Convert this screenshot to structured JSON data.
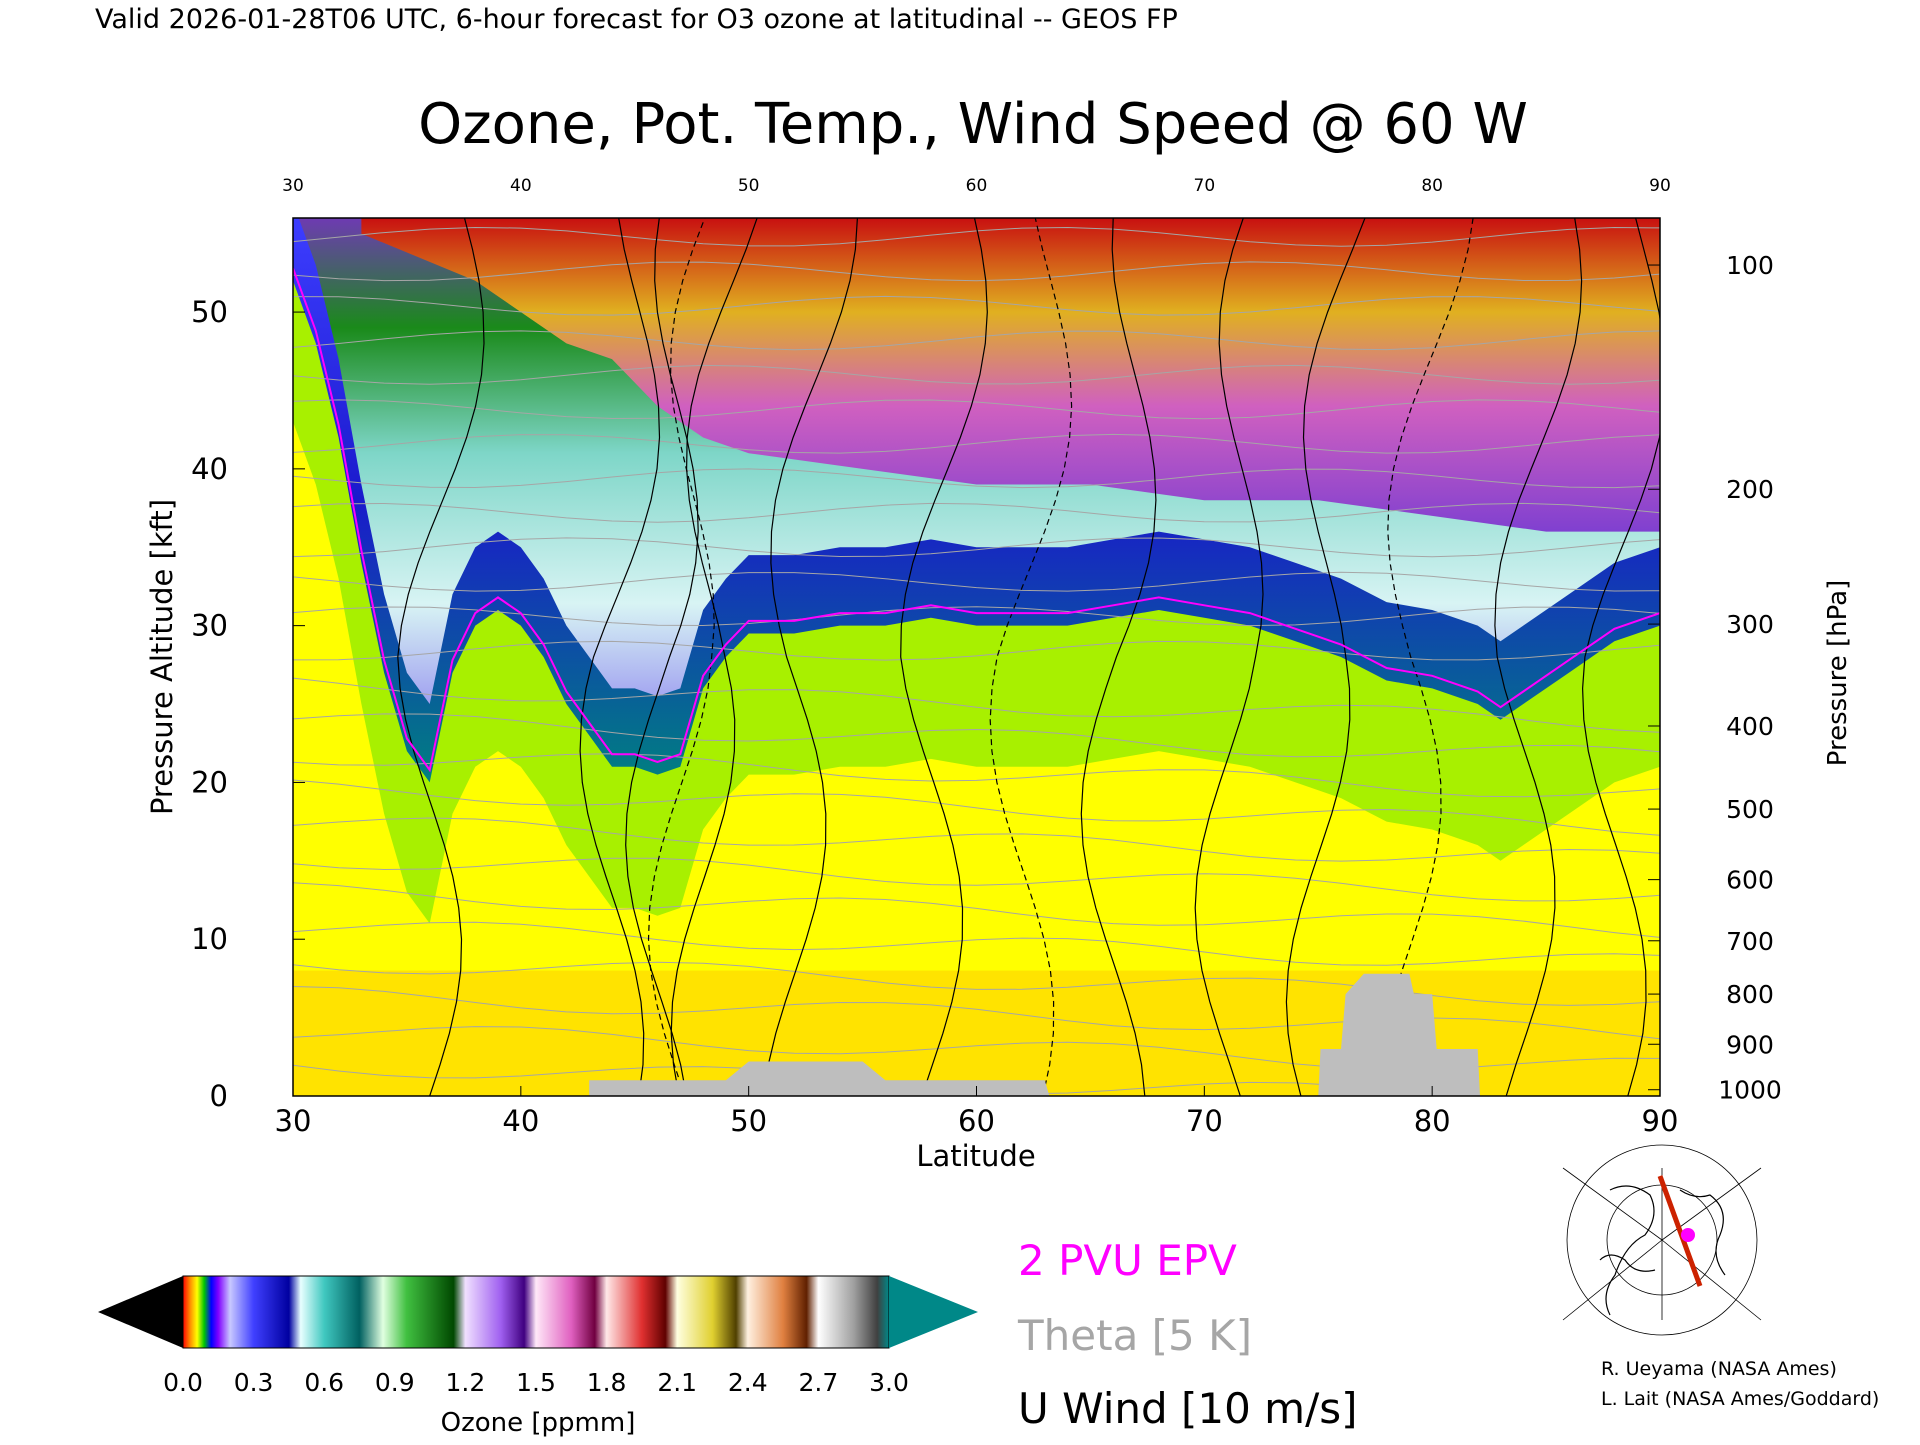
{
  "header": {
    "valid_line": "Valid 2026-01-28T06 UTC, 6-hour forecast for O3 ozone at latitudinal -- GEOS FP"
  },
  "chart_data": {
    "type": "heatmap",
    "title": "Ozone, Pot. Temp., Wind Speed @ 60 W",
    "xlabel": "Latitude",
    "ylabel": "Pressure Altitude [kft]",
    "ylabel_right": "Pressure [hPa]",
    "xlim": [
      30,
      90
    ],
    "ylim": [
      0,
      56
    ],
    "x_ticks": [
      "30",
      "40",
      "50",
      "60",
      "70",
      "80",
      "90"
    ],
    "x_ticks_top": [
      "30",
      "40",
      "50",
      "60",
      "70",
      "80",
      "90"
    ],
    "y_ticks": [
      "0",
      "10",
      "20",
      "30",
      "40",
      "50"
    ],
    "pressure_ticks": [
      {
        "label": "100",
        "kft": 53.0
      },
      {
        "label": "200",
        "kft": 38.7
      },
      {
        "label": "300",
        "kft": 30.1
      },
      {
        "label": "400",
        "kft": 23.6
      },
      {
        "label": "500",
        "kft": 18.3
      },
      {
        "label": "600",
        "kft": 13.8
      },
      {
        "label": "700",
        "kft": 9.9
      },
      {
        "label": "800",
        "kft": 6.5
      },
      {
        "label": "900",
        "kft": 3.3
      },
      {
        "label": "1000",
        "kft": 0.4
      }
    ],
    "ozone_tropopause_kft": [
      [
        30,
        52
      ],
      [
        31,
        48
      ],
      [
        32,
        42
      ],
      [
        33,
        34
      ],
      [
        34,
        27
      ],
      [
        35,
        22
      ],
      [
        36,
        20
      ],
      [
        37,
        27
      ],
      [
        38,
        30
      ],
      [
        39,
        31
      ],
      [
        40,
        30
      ],
      [
        41,
        28
      ],
      [
        42,
        25
      ],
      [
        43,
        23
      ],
      [
        44,
        21
      ],
      [
        45,
        21
      ],
      [
        46,
        20.5
      ],
      [
        47,
        21
      ],
      [
        48,
        26
      ],
      [
        49,
        28
      ],
      [
        50,
        29.5
      ],
      [
        52,
        29.5
      ],
      [
        54,
        30
      ],
      [
        56,
        30
      ],
      [
        58,
        30.5
      ],
      [
        60,
        30
      ],
      [
        62,
        30
      ],
      [
        64,
        30
      ],
      [
        66,
        30.5
      ],
      [
        68,
        31
      ],
      [
        70,
        30.5
      ],
      [
        72,
        30
      ],
      [
        74,
        29
      ],
      [
        76,
        28
      ],
      [
        78,
        26.5
      ],
      [
        80,
        26
      ],
      [
        82,
        25
      ],
      [
        83,
        24
      ],
      [
        84,
        25
      ],
      [
        86,
        27
      ],
      [
        88,
        29
      ],
      [
        90,
        30
      ]
    ],
    "stratosphere_top_kft": [
      [
        33,
        55
      ],
      [
        38,
        52
      ],
      [
        42,
        48
      ],
      [
        44,
        47
      ],
      [
        46,
        44
      ],
      [
        48,
        42
      ],
      [
        50,
        41
      ],
      [
        55,
        40
      ],
      [
        60,
        39
      ],
      [
        65,
        39
      ],
      [
        70,
        38
      ],
      [
        75,
        38
      ],
      [
        80,
        37
      ],
      [
        85,
        36
      ],
      [
        90,
        36
      ]
    ],
    "terrain_kft": [
      [
        43,
        1
      ],
      [
        49,
        1
      ],
      [
        50,
        2.2
      ],
      [
        52,
        2.2
      ],
      [
        55,
        2.2
      ],
      [
        56,
        1
      ],
      [
        63,
        1
      ],
      [
        63.2,
        0
      ],
      [
        75,
        0
      ],
      [
        75.1,
        3
      ],
      [
        76,
        3
      ],
      [
        76.2,
        6.5
      ],
      [
        77,
        7.8
      ],
      [
        79,
        7.8
      ],
      [
        79.2,
        6.5
      ],
      [
        80,
        6.5
      ],
      [
        80.2,
        3
      ],
      [
        82,
        3
      ],
      [
        82.1,
        0
      ]
    ],
    "colorbar": {
      "label": "Ozone [ppmm]",
      "min": 0.0,
      "max": 3.0,
      "tick_labels": [
        "0.0",
        "0.3",
        "0.6",
        "0.9",
        "1.2",
        "1.5",
        "1.8",
        "2.1",
        "2.4",
        "2.7",
        "3.0"
      ],
      "stops": [
        {
          "v": 0.0,
          "c": "#ff0000"
        },
        {
          "v": 0.03,
          "c": "#ff8c00"
        },
        {
          "v": 0.06,
          "c": "#ffff00"
        },
        {
          "v": 0.09,
          "c": "#00c800"
        },
        {
          "v": 0.12,
          "c": "#0000ff"
        },
        {
          "v": 0.15,
          "c": "#8000ff"
        },
        {
          "v": 0.2,
          "c": "#c8c8ff"
        },
        {
          "v": 0.3,
          "c": "#4040ff"
        },
        {
          "v": 0.45,
          "c": "#0000a0"
        },
        {
          "v": 0.5,
          "c": "#e8ffff"
        },
        {
          "v": 0.6,
          "c": "#40c8c0"
        },
        {
          "v": 0.75,
          "c": "#006060"
        },
        {
          "v": 0.85,
          "c": "#e0ffe0"
        },
        {
          "v": 0.95,
          "c": "#40c040"
        },
        {
          "v": 1.15,
          "c": "#004800"
        },
        {
          "v": 1.2,
          "c": "#f0e0ff"
        },
        {
          "v": 1.35,
          "c": "#a060f0"
        },
        {
          "v": 1.45,
          "c": "#400080"
        },
        {
          "v": 1.5,
          "c": "#ffe8f8"
        },
        {
          "v": 1.65,
          "c": "#e060c0"
        },
        {
          "v": 1.75,
          "c": "#700040"
        },
        {
          "v": 1.8,
          "c": "#ffe8e8"
        },
        {
          "v": 1.95,
          "c": "#e03030"
        },
        {
          "v": 2.05,
          "c": "#600000"
        },
        {
          "v": 2.1,
          "c": "#ffffe0"
        },
        {
          "v": 2.25,
          "c": "#e0d030"
        },
        {
          "v": 2.35,
          "c": "#504000"
        },
        {
          "v": 2.4,
          "c": "#fff0e0"
        },
        {
          "v": 2.55,
          "c": "#e08040"
        },
        {
          "v": 2.65,
          "c": "#602000"
        },
        {
          "v": 2.7,
          "c": "#ffffff"
        },
        {
          "v": 2.85,
          "c": "#a0a0a0"
        },
        {
          "v": 2.95,
          "c": "#404040"
        },
        {
          "v": 3.0,
          "c": "#008888"
        }
      ]
    }
  },
  "legend": {
    "epv": "2 PVU EPV",
    "theta": "Theta [5 K]",
    "uwind": "U Wind [10 m/s]",
    "colors": {
      "epv": "#ff00ff",
      "theta": "#a6a6a6",
      "uwind": "#000000"
    }
  },
  "credits": {
    "line1": "R. Ueyama (NASA Ames)",
    "line2": "L. Lait (NASA Ames/Goddard)"
  },
  "inset_map": {
    "icon": "polar-map-icon",
    "section_color": "#cc2200",
    "marker_color": "#ff00ff"
  }
}
